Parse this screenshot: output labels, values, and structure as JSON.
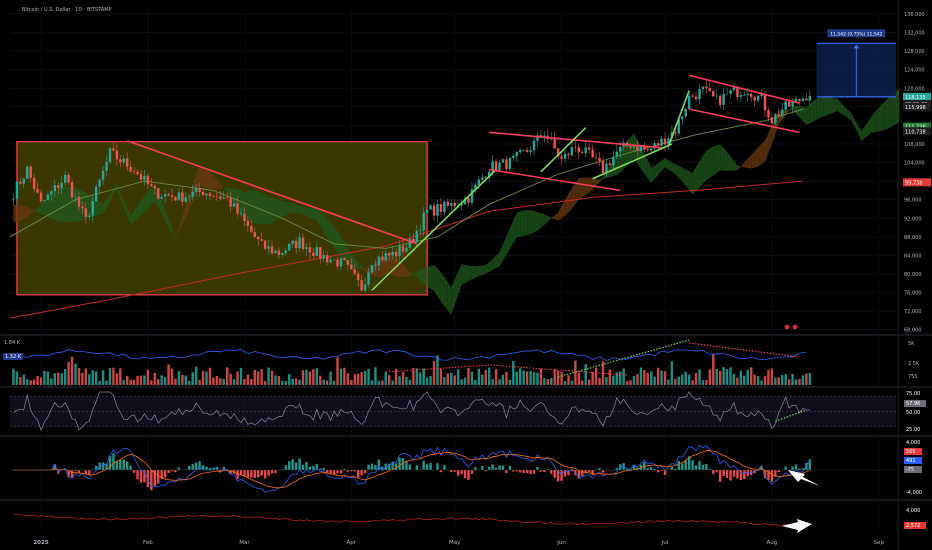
{
  "header": {
    "title": "Bitcoin / U.S. Dollar · 1D · BITSTAMP"
  },
  "colors": {
    "background": "#000000",
    "bull": "#26a69a",
    "bear": "#ef5350",
    "trend_red": "#ff3d5a",
    "trend_green": "#7ed957",
    "box_fill": "#4d4a00",
    "box_stroke": "#ff3d5a",
    "cloud_green": "#1f5a1f",
    "cloud_red": "#6b3a10",
    "ma_slow": "#c62828",
    "ma_fast": "#6d8f3a",
    "target_fill": "#0b1f4a",
    "target_stroke": "#3d6cff",
    "rsi_line": "#8a8a9e",
    "macd_line": "#2962ff",
    "signal_line": "#ff6d00",
    "arrow": "#ffffff"
  },
  "chart_data": {
    "type": "candlestick",
    "symbol": "Bitcoin / U.S. Dollar · 1D · BITSTAMP",
    "x_ticks": [
      "2025",
      "Feb",
      "Mar",
      "Apr",
      "May",
      "Jun",
      "Jul",
      "Aug",
      "Sep"
    ],
    "x_tick_days": [
      0,
      31,
      59,
      90,
      120,
      151,
      181,
      212,
      243
    ],
    "x_range_days": [
      -9,
      248
    ],
    "y_ticks": [
      68000,
      72000,
      76000,
      80000,
      84000,
      88000,
      92000,
      96000,
      100000,
      104000,
      108000,
      112000,
      116000,
      120000,
      124000,
      128000,
      132000,
      136000
    ],
    "y_tick_labels": [
      "68,000",
      "72,000",
      "76,000",
      "80,000",
      "84,000",
      "88,000",
      "92,000",
      "96,000",
      "100,000",
      "104,000",
      "108,000",
      "112,000",
      "116,000",
      "120,000",
      "124,000",
      "128,000",
      "132,000",
      "136,000"
    ],
    "y_range": [
      67500,
      137500
    ],
    "price_waypoints": [
      [
        -8,
        97500
      ],
      [
        -4,
        102500
      ],
      [
        0,
        95000
      ],
      [
        7,
        100800
      ],
      [
        13,
        91500
      ],
      [
        20,
        106000
      ],
      [
        27,
        102500
      ],
      [
        33,
        97500
      ],
      [
        40,
        96500
      ],
      [
        47,
        97800
      ],
      [
        54,
        96200
      ],
      [
        60,
        90000
      ],
      [
        64,
        86000
      ],
      [
        69,
        84500
      ],
      [
        75,
        87000
      ],
      [
        81,
        84000
      ],
      [
        88,
        82000
      ],
      [
        93,
        77000
      ],
      [
        96,
        83000
      ],
      [
        103,
        84500
      ],
      [
        107,
        86500
      ],
      [
        112,
        93500
      ],
      [
        118,
        94500
      ],
      [
        124,
        96500
      ],
      [
        130,
        103000
      ],
      [
        136,
        104000
      ],
      [
        141,
        106500
      ],
      [
        146,
        110500
      ],
      [
        151,
        104500
      ],
      [
        155,
        107500
      ],
      [
        159,
        105500
      ],
      [
        163,
        102500
      ],
      [
        167,
        106200
      ],
      [
        171,
        108000
      ],
      [
        176,
        106500
      ],
      [
        180,
        108500
      ],
      [
        184,
        111000
      ],
      [
        188,
        118000
      ],
      [
        192,
        119500
      ],
      [
        196,
        117200
      ],
      [
        200,
        119000
      ],
      [
        205,
        119800
      ],
      [
        209,
        117500
      ],
      [
        212,
        113200
      ],
      [
        215,
        115500
      ],
      [
        219,
        117000
      ],
      [
        223,
        119000
      ]
    ],
    "last_price": 118135,
    "price_labels": [
      "118,135",
      "03:39:29",
      "115,998",
      "111,738",
      "110,738",
      "99,738"
    ],
    "target_label": "11,542 (9.75%) 11,542",
    "target_range": [
      118135,
      129677
    ],
    "ma_slow": [
      [
        -9,
        70500
      ],
      [
        20,
        74500
      ],
      [
        60,
        80500
      ],
      [
        100,
        86000
      ],
      [
        130,
        93500
      ],
      [
        160,
        96500
      ],
      [
        190,
        98000
      ],
      [
        221,
        100000
      ]
    ],
    "ma_fast": [
      [
        -9,
        88000
      ],
      [
        10,
        96000
      ],
      [
        30,
        100000
      ],
      [
        50,
        98000
      ],
      [
        70,
        92000
      ],
      [
        85,
        86500
      ],
      [
        100,
        85500
      ],
      [
        115,
        88000
      ],
      [
        130,
        95000
      ],
      [
        150,
        101500
      ],
      [
        170,
        106000
      ],
      [
        190,
        110000
      ],
      [
        210,
        113000
      ],
      [
        221,
        115500
      ]
    ],
    "consolidation_box": {
      "x": [
        -7,
        112
      ],
      "y": [
        75500,
        108500
      ]
    },
    "trendlines": [
      {
        "color": "red",
        "points": [
          [
            25,
            108700
          ],
          [
            109,
            86500
          ]
        ]
      },
      {
        "color": "green",
        "points": [
          [
            96,
            76500
          ],
          [
            132,
            102500
          ]
        ]
      },
      {
        "color": "red",
        "points": [
          [
            130,
            110500
          ],
          [
            180,
            107200
          ]
        ]
      },
      {
        "color": "red",
        "points": [
          [
            130,
            102500
          ],
          [
            168,
            98000
          ]
        ]
      },
      {
        "color": "green",
        "points": [
          [
            145,
            102000
          ],
          [
            158,
            111500
          ]
        ]
      },
      {
        "color": "green",
        "points": [
          [
            160,
            100500
          ],
          [
            183,
            108000
          ]
        ]
      },
      {
        "color": "green",
        "points": [
          [
            182,
            107500
          ],
          [
            188,
            119500
          ]
        ]
      },
      {
        "color": "red",
        "points": [
          [
            188,
            122800
          ],
          [
            220,
            116800
          ]
        ]
      },
      {
        "color": "red",
        "points": [
          [
            188,
            115500
          ],
          [
            220,
            110500
          ]
        ]
      }
    ],
    "volume": {
      "label": "1.84 K",
      "axis_labels": [
        "5K",
        "2.5K",
        "755"
      ],
      "ma_label": "1.32 K"
    },
    "rsi": {
      "axis_labels": [
        "75.00",
        "57.96",
        "50.00",
        "25.00"
      ],
      "levels": [
        70,
        50,
        30
      ]
    },
    "macd": {
      "axis_labels": [
        "4,000",
        "566",
        "491",
        "-75",
        "-4,000"
      ]
    },
    "bottom_indicator": {
      "axis_labels": [
        "4,000",
        "2,572"
      ]
    }
  }
}
